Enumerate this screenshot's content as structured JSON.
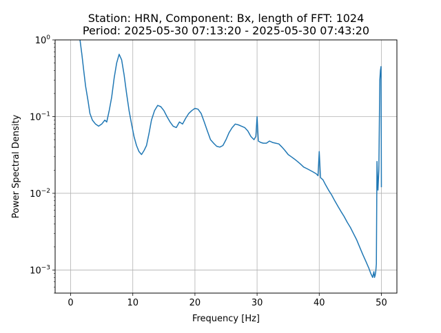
{
  "chart_data": {
    "type": "line",
    "title_line1": "Station: HRN, Component: Bx, length of FFT: 1024",
    "title_line2": "Period: 2025-05-30 07:13:20 - 2025-05-30 07:43:20",
    "xlabel": "Frequency [Hz]",
    "ylabel": "Power Spectral Density",
    "xlim": [
      -2.5,
      52.5
    ],
    "ylim": [
      0.0005,
      1
    ],
    "yscale": "log",
    "grid": true,
    "line_color": "#1f77b4",
    "x_ticks": [
      {
        "value": 0,
        "label": "0"
      },
      {
        "value": 10,
        "label": "10"
      },
      {
        "value": 20,
        "label": "20"
      },
      {
        "value": 30,
        "label": "30"
      },
      {
        "value": 40,
        "label": "40"
      },
      {
        "value": 50,
        "label": "50"
      }
    ],
    "y_ticks": [
      {
        "value": 1,
        "base": "10",
        "exp": "0"
      },
      {
        "value": 0.1,
        "base": "10",
        "exp": "−1"
      },
      {
        "value": 0.01,
        "base": "10",
        "exp": "−2"
      },
      {
        "value": 0.001,
        "base": "10",
        "exp": "−3"
      }
    ],
    "series": [
      {
        "x": [
          1.5,
          1.8,
          2.1,
          2.4,
          2.8,
          3.1,
          3.5,
          4.0,
          4.5,
          5.0,
          5.5,
          5.8,
          6.2,
          6.6,
          7.0,
          7.4,
          7.8,
          8.2,
          8.6,
          9.0,
          9.4,
          9.8,
          10.2,
          10.6,
          11.0,
          11.4,
          11.8,
          12.2,
          12.6,
          13.0,
          13.5,
          14.0,
          14.5,
          15.0,
          15.5,
          16.0,
          16.5,
          17.0,
          17.5,
          18.0,
          18.5,
          19.0,
          19.5,
          20.0,
          20.5,
          21.0,
          21.5,
          22.0,
          22.5,
          23.0,
          23.5,
          24.0,
          24.5,
          25.0,
          25.5,
          26.0,
          26.5,
          27.0,
          27.5,
          28.0,
          28.5,
          29.0,
          29.5,
          29.8,
          30.0,
          30.2,
          30.6,
          31.0,
          31.5,
          32.0,
          32.5,
          33.0,
          33.5,
          34.0,
          34.5,
          35.0,
          35.5,
          36.0,
          36.5,
          37.0,
          37.5,
          38.0,
          38.5,
          39.0,
          39.5,
          39.8,
          40.0,
          40.2,
          40.6,
          41.0,
          41.5,
          42.0,
          42.5,
          43.0,
          43.5,
          44.0,
          44.5,
          45.0,
          45.5,
          46.0,
          46.5,
          47.0,
          47.5,
          48.0,
          48.3,
          48.6,
          48.8,
          48.9,
          49.0,
          49.1,
          49.2,
          49.3,
          49.45,
          49.6,
          49.75,
          49.85,
          49.95,
          50.0
        ],
        "y": [
          1.0,
          0.65,
          0.4,
          0.25,
          0.16,
          0.11,
          0.09,
          0.08,
          0.075,
          0.08,
          0.09,
          0.085,
          0.12,
          0.18,
          0.32,
          0.5,
          0.65,
          0.55,
          0.35,
          0.2,
          0.12,
          0.08,
          0.055,
          0.042,
          0.035,
          0.032,
          0.036,
          0.042,
          0.06,
          0.09,
          0.12,
          0.14,
          0.135,
          0.12,
          0.1,
          0.085,
          0.075,
          0.072,
          0.085,
          0.08,
          0.095,
          0.11,
          0.12,
          0.128,
          0.125,
          0.11,
          0.085,
          0.065,
          0.05,
          0.045,
          0.041,
          0.04,
          0.042,
          0.05,
          0.062,
          0.072,
          0.08,
          0.078,
          0.075,
          0.072,
          0.065,
          0.055,
          0.05,
          0.055,
          0.1,
          0.048,
          0.046,
          0.045,
          0.045,
          0.048,
          0.046,
          0.045,
          0.044,
          0.04,
          0.036,
          0.032,
          0.03,
          0.028,
          0.026,
          0.024,
          0.022,
          0.021,
          0.02,
          0.019,
          0.018,
          0.017,
          0.035,
          0.016,
          0.015,
          0.013,
          0.011,
          0.0095,
          0.008,
          0.0068,
          0.0058,
          0.005,
          0.0042,
          0.0036,
          0.003,
          0.0025,
          0.002,
          0.0016,
          0.0013,
          0.00105,
          0.0009,
          0.0008,
          0.00095,
          0.0008,
          0.00085,
          0.00095,
          0.0012,
          0.026,
          0.011,
          0.02,
          0.3,
          0.4,
          0.45,
          0.012
        ]
      }
    ]
  }
}
